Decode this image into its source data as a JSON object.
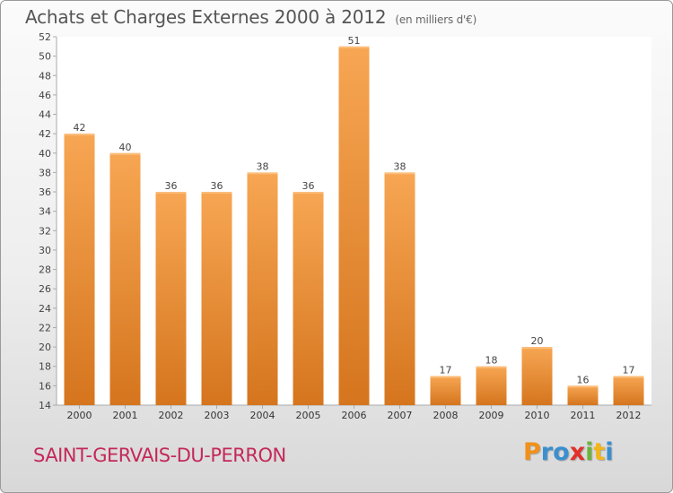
{
  "header": {
    "title": "Achats et Charges Externes 2000 à 2012",
    "unit": "(en milliers d'€)"
  },
  "footer": {
    "commune": "SAINT-GERVAIS-DU-PERRON",
    "logo_letters": [
      "P",
      "r",
      "o",
      "x",
      "i",
      "t",
      "i"
    ],
    "logo_colors": [
      "#f29018",
      "#3a8fd0",
      "#3a8fd0",
      "#e2312b",
      "#6cb33f",
      "#f2b51c",
      "#3a8fd0"
    ]
  },
  "chart_data": {
    "type": "bar",
    "title": "Achats et Charges Externes 2000 à 2012",
    "subtitle": "(en milliers d'€)",
    "xlabel": "",
    "ylabel": "",
    "categories": [
      "2000",
      "2001",
      "2002",
      "2003",
      "2004",
      "2005",
      "2006",
      "2007",
      "2008",
      "2009",
      "2010",
      "2011",
      "2012"
    ],
    "values": [
      42,
      40,
      36,
      36,
      38,
      36,
      51,
      38,
      17,
      18,
      20,
      16,
      17
    ],
    "ylim": [
      14,
      52
    ],
    "yticks": [
      14,
      16,
      18,
      20,
      22,
      24,
      26,
      28,
      30,
      32,
      34,
      36,
      38,
      40,
      42,
      44,
      46,
      48,
      50,
      52
    ],
    "grid": false,
    "bar_color": "#f29a45",
    "bar_color_dark": "#d5751e"
  }
}
